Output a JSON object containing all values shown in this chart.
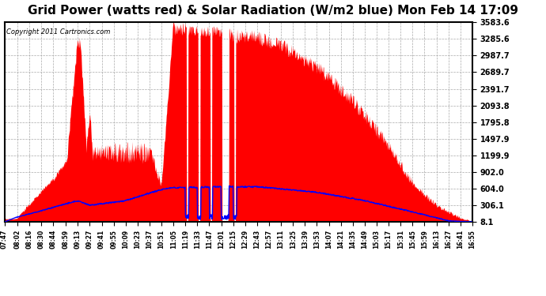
{
  "title": "Grid Power (watts red) & Solar Radiation (W/m2 blue) Mon Feb 14 17:09",
  "copyright_text": "Copyright 2011 Cartronics.com",
  "yticks": [
    8.1,
    306.1,
    604.0,
    902.0,
    1199.9,
    1497.9,
    1795.8,
    2093.8,
    2391.7,
    2689.7,
    2987.7,
    3285.6,
    3583.6
  ],
  "ymin": 8.1,
  "ymax": 3583.6,
  "grid_color": "#aaaaaa",
  "background_color": "#ffffff",
  "fill_color": "red",
  "line_color": "blue",
  "title_fontsize": 11,
  "x_tick_labels": [
    "07:47",
    "08:02",
    "08:16",
    "08:30",
    "08:44",
    "08:59",
    "09:13",
    "09:27",
    "09:41",
    "09:55",
    "10:09",
    "10:23",
    "10:37",
    "10:51",
    "11:05",
    "11:19",
    "11:33",
    "11:47",
    "12:01",
    "12:15",
    "12:29",
    "12:43",
    "12:57",
    "13:11",
    "13:25",
    "13:39",
    "13:53",
    "14:07",
    "14:21",
    "14:35",
    "14:49",
    "15:03",
    "15:17",
    "15:31",
    "15:45",
    "15:59",
    "16:13",
    "16:27",
    "16:41",
    "16:55"
  ]
}
